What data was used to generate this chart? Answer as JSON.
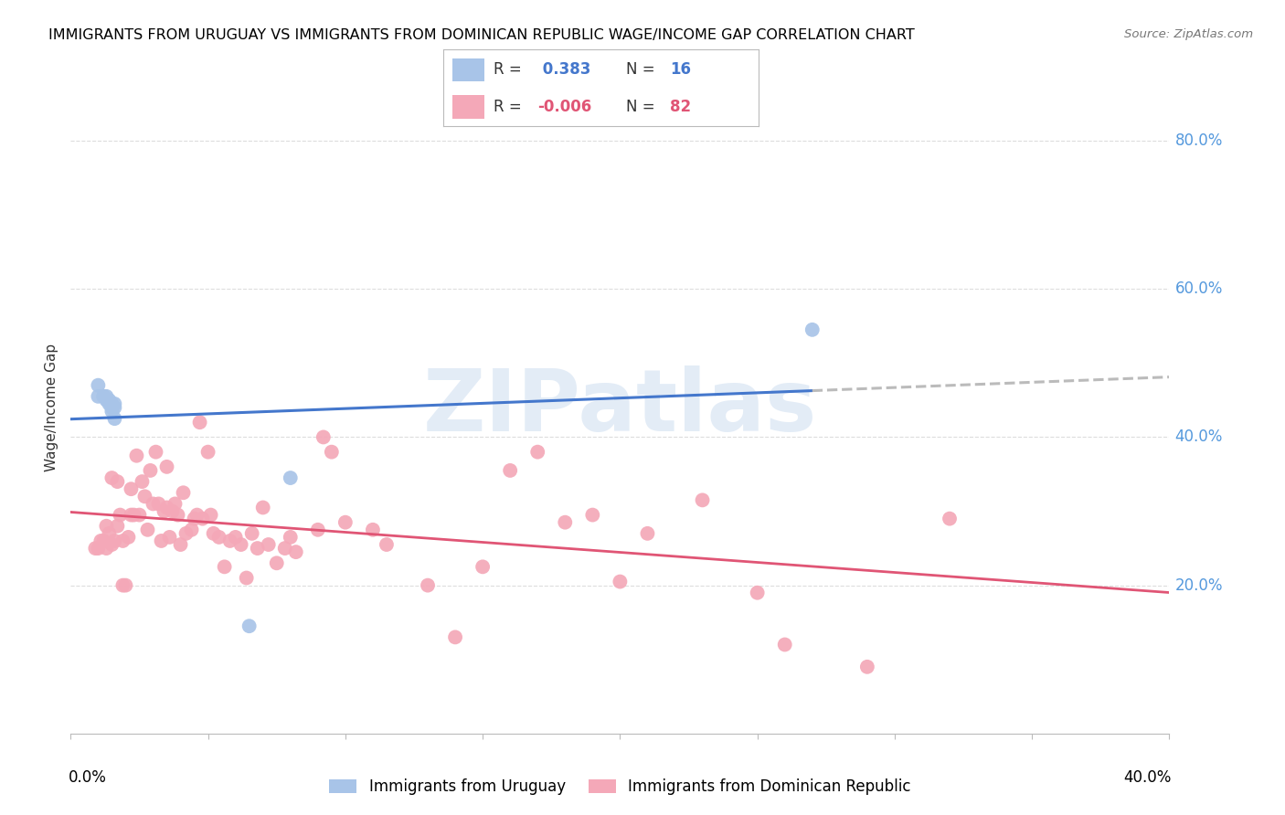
{
  "title": "IMMIGRANTS FROM URUGUAY VS IMMIGRANTS FROM DOMINICAN REPUBLIC WAGE/INCOME GAP CORRELATION CHART",
  "source": "Source: ZipAtlas.com",
  "ylabel": "Wage/Income Gap",
  "xlim": [
    0.0,
    0.4
  ],
  "ylim": [
    0.0,
    0.88
  ],
  "uruguay_color": "#a8c4e8",
  "dominican_color": "#f4a8b8",
  "trend_uruguay_color": "#4477cc",
  "trend_dominican_color": "#e05575",
  "trend_uruguay_dash_color": "#bbbbbb",
  "uruguay_x": [
    0.01,
    0.01,
    0.012,
    0.012,
    0.013,
    0.013,
    0.014,
    0.014,
    0.015,
    0.015,
    0.015,
    0.016,
    0.016,
    0.016,
    0.065,
    0.08,
    0.27
  ],
  "uruguay_y": [
    0.455,
    0.47,
    0.455,
    0.455,
    0.45,
    0.455,
    0.45,
    0.445,
    0.445,
    0.435,
    0.44,
    0.425,
    0.44,
    0.445,
    0.145,
    0.345,
    0.545
  ],
  "dominican_x": [
    0.009,
    0.01,
    0.011,
    0.012,
    0.013,
    0.013,
    0.014,
    0.015,
    0.015,
    0.016,
    0.017,
    0.017,
    0.018,
    0.019,
    0.019,
    0.02,
    0.021,
    0.022,
    0.022,
    0.023,
    0.024,
    0.025,
    0.026,
    0.027,
    0.028,
    0.029,
    0.03,
    0.031,
    0.032,
    0.033,
    0.034,
    0.035,
    0.035,
    0.036,
    0.037,
    0.038,
    0.039,
    0.04,
    0.041,
    0.042,
    0.044,
    0.045,
    0.046,
    0.047,
    0.048,
    0.05,
    0.051,
    0.052,
    0.054,
    0.056,
    0.058,
    0.06,
    0.062,
    0.064,
    0.066,
    0.068,
    0.07,
    0.072,
    0.075,
    0.078,
    0.08,
    0.082,
    0.09,
    0.092,
    0.095,
    0.1,
    0.11,
    0.115,
    0.13,
    0.14,
    0.15,
    0.16,
    0.17,
    0.18,
    0.19,
    0.2,
    0.21,
    0.23,
    0.25,
    0.26,
    0.29,
    0.32
  ],
  "dominican_y": [
    0.25,
    0.25,
    0.26,
    0.26,
    0.25,
    0.28,
    0.27,
    0.255,
    0.345,
    0.26,
    0.28,
    0.34,
    0.295,
    0.2,
    0.26,
    0.2,
    0.265,
    0.295,
    0.33,
    0.295,
    0.375,
    0.295,
    0.34,
    0.32,
    0.275,
    0.355,
    0.31,
    0.38,
    0.31,
    0.26,
    0.3,
    0.305,
    0.36,
    0.265,
    0.3,
    0.31,
    0.295,
    0.255,
    0.325,
    0.27,
    0.275,
    0.29,
    0.295,
    0.42,
    0.29,
    0.38,
    0.295,
    0.27,
    0.265,
    0.225,
    0.26,
    0.265,
    0.255,
    0.21,
    0.27,
    0.25,
    0.305,
    0.255,
    0.23,
    0.25,
    0.265,
    0.245,
    0.275,
    0.4,
    0.38,
    0.285,
    0.275,
    0.255,
    0.2,
    0.13,
    0.225,
    0.355,
    0.38,
    0.285,
    0.295,
    0.205,
    0.27,
    0.315,
    0.19,
    0.12,
    0.09,
    0.29
  ],
  "watermark_text": "ZIPatlas",
  "background_color": "#ffffff",
  "grid_color": "#dddddd",
  "right_tick_color": "#5599dd",
  "ytick_vals": [
    0.2,
    0.4,
    0.6,
    0.8
  ],
  "ytick_labels": [
    "20.0%",
    "40.0%",
    "60.0%",
    "80.0%"
  ]
}
